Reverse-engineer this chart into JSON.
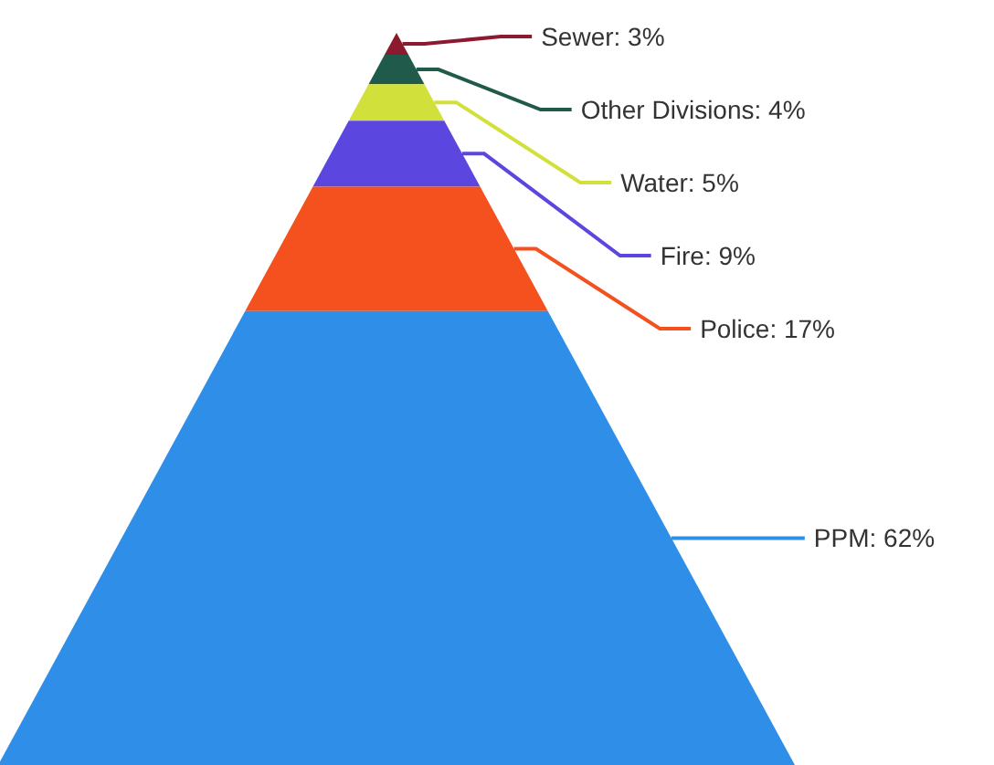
{
  "chart_data": {
    "type": "other",
    "categories": [
      "Sewer",
      "Other Divisions",
      "Water",
      "Fire",
      "Police",
      "PPM"
    ],
    "values": [
      3,
      4,
      5,
      9,
      17,
      62
    ],
    "colors": [
      "#8b1a2e",
      "#1f5a4b",
      "#d2e03c",
      "#5b47e0",
      "#f4511e",
      "#2f8fe8"
    ],
    "value_labels": [
      ": 3%",
      ": 4%",
      ": 5%",
      ": 9%",
      ": 17%",
      ": 62%"
    ]
  }
}
